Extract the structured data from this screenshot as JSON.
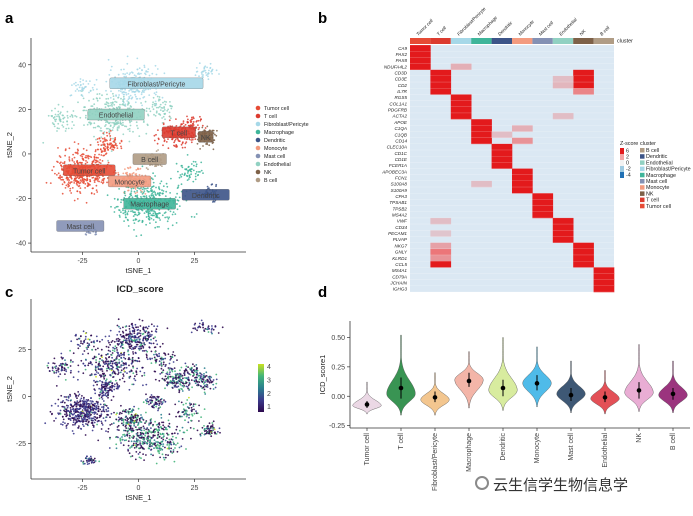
{
  "panels": {
    "a": "a",
    "b": "b",
    "c": "c",
    "d": "d"
  },
  "colors": {
    "Tumor cell": "#e64b35",
    "T cell": "#dc3b2f",
    "Fibroblast/Pericyte": "#a6d8e8",
    "Macrophage": "#3eb59a",
    "Dendritic": "#3c5488",
    "Monocyte": "#f39b7f",
    "Mast cell": "#8491b4",
    "Endothelial": "#91d1c2",
    "NK": "#7e6148",
    "B cell": "#b09c85"
  },
  "chart_data": [
    {
      "panel": "a",
      "type": "scatter",
      "xlabel": "tSNE_1",
      "ylabel": "tSNE_2",
      "xlim": [
        -48,
        48
      ],
      "ylim": [
        -44,
        52
      ],
      "xticks": [
        -25,
        0,
        25
      ],
      "yticks": [
        -40,
        -20,
        0,
        20,
        40
      ],
      "legend": [
        "Tumor cell",
        "T cell",
        "Fibroblast/Pericyte",
        "Macrophage",
        "Dendritic",
        "Monocyte",
        "Mast cell",
        "Endothelial",
        "NK",
        "B cell"
      ],
      "clusters": [
        {
          "name": "Fibroblast/Pericyte",
          "label": "Fibroblast/Pericyte",
          "cx": -2,
          "cy": 31,
          "label_x": 8,
          "label_y": 31
        },
        {
          "name": "Endothelial",
          "label": "Endothelial",
          "cx": -12,
          "cy": 17,
          "label_x": -10,
          "label_y": 17
        },
        {
          "name": "T cell",
          "label": "T cell",
          "cx": 18,
          "cy": 9,
          "label_x": 18,
          "label_y": 9
        },
        {
          "name": "NK",
          "label": "NK",
          "cx": 30,
          "cy": 8,
          "label_x": 30,
          "label_y": 7
        },
        {
          "name": "B cell",
          "label": "B cell",
          "cx": 7,
          "cy": -3,
          "label_x": 5,
          "label_y": -3
        },
        {
          "name": "Tumor cell",
          "label": "Tumor cell",
          "cx": -25,
          "cy": -8,
          "label_x": -22,
          "label_y": -8
        },
        {
          "name": "Monocyte",
          "label": "Monocyte",
          "cx": -3,
          "cy": -12,
          "label_x": -4,
          "label_y": -13
        },
        {
          "name": "Macrophage",
          "label": "Macrophage",
          "cx": 5,
          "cy": -22,
          "label_x": 5,
          "label_y": -23
        },
        {
          "name": "Dendritic",
          "label": "Dendritic",
          "cx": 32,
          "cy": -18,
          "label_x": 30,
          "label_y": -19
        },
        {
          "name": "Mast cell",
          "label": "Mast cell",
          "cx": -22,
          "cy": -34,
          "label_x": -26,
          "label_y": -33
        }
      ]
    },
    {
      "panel": "b",
      "type": "heatmap",
      "annotation": "cluster",
      "columns": [
        "Tumor cell",
        "T cell",
        "Fibroblast/Pericyte",
        "Macrophage",
        "Dendritic",
        "Monocyte",
        "Mast cell",
        "Endothelial",
        "NK",
        "B cell"
      ],
      "rows": [
        "CA9",
        "PAX2",
        "PAX8",
        "NDUFA4L2",
        "CD3D",
        "CD3E",
        "CD2",
        "IL7R",
        "RGS5",
        "COL1A1",
        "PDGFRB",
        "ACTA2",
        "APOE",
        "C1QA",
        "C1QB",
        "CD14",
        "CLEC10A",
        "CD1C",
        "CD1E",
        "FCER1A",
        "APOBEC3A",
        "FCN1",
        "S100A8",
        "S100A9",
        "CPA3",
        "TPSAB1",
        "TPSB2",
        "MS4A2",
        "VWF",
        "CD34",
        "PECAM1",
        "PLVAP",
        "NKG7",
        "GNLY",
        "KLRD1",
        "CCL5",
        "MS4A1",
        "CD79A",
        "JCHAIN",
        "IGHG3"
      ],
      "marker_groups": [
        [
          0,
          3
        ],
        [
          4,
          7
        ],
        [
          8,
          11
        ],
        [
          12,
          15
        ],
        [
          16,
          19
        ],
        [
          20,
          23
        ],
        [
          24,
          27
        ],
        [
          28,
          31
        ],
        [
          32,
          35
        ],
        [
          36,
          39
        ]
      ],
      "secondary": [
        [
          4,
          8,
          1
        ],
        [
          5,
          8,
          1
        ],
        [
          6,
          8,
          1
        ],
        [
          7,
          8,
          0.7
        ],
        [
          33,
          1,
          0.8
        ],
        [
          34,
          1,
          0.6
        ],
        [
          35,
          1,
          1
        ],
        [
          32,
          1,
          0.5
        ],
        [
          13,
          5,
          0.4
        ],
        [
          15,
          5,
          0.6
        ],
        [
          14,
          4,
          0.3
        ],
        [
          22,
          3,
          0.3
        ],
        [
          11,
          7,
          0.3
        ],
        [
          28,
          1,
          0.3
        ],
        [
          30,
          1,
          0.25
        ],
        [
          3,
          2,
          0.4
        ],
        [
          5,
          7,
          0.3
        ],
        [
          6,
          7,
          0.35
        ]
      ],
      "legend": {
        "title_zscore": "Z-score",
        "zscore_ticks": [
          "6",
          "2",
          "0",
          "-2",
          "-4"
        ],
        "title_cluster": "cluster",
        "cluster_entries": [
          "B cell",
          "Dendritic",
          "Endothelial",
          "Fibroblast/Pericyte",
          "Macrophage",
          "Mast cell",
          "Monocyte",
          "NK",
          "T cell",
          "Tumor cell"
        ]
      }
    },
    {
      "panel": "c",
      "type": "scatter",
      "title": "ICD_score",
      "xlabel": "tSNE_1",
      "ylabel": "tSNE_2",
      "xlim": [
        -48,
        48
      ],
      "ylim": [
        -44,
        52
      ],
      "xticks": [
        -25,
        0,
        25
      ],
      "yticks": [
        -25,
        0,
        25
      ],
      "colorbar": {
        "min": 0.6,
        "max": 4.2,
        "ticks": [
          1,
          2,
          3,
          4
        ],
        "colors": [
          "#2d0a4e",
          "#3b3a8c",
          "#2a7f8e",
          "#42b57a",
          "#c9e020"
        ]
      }
    },
    {
      "panel": "d",
      "type": "violin",
      "ylabel": "ICD_score1",
      "ylim": [
        -0.27,
        0.64
      ],
      "yticks": [
        -0.25,
        0.0,
        0.25,
        0.5
      ],
      "ytick_labels": [
        "-0.25",
        "0.00",
        "0.25",
        "0.50"
      ],
      "categories": [
        "Tumor cell",
        "T cell",
        "Fibroblast/Pericyte",
        "Macrophage",
        "Dendritic",
        "Monocyte",
        "Mast cell",
        "Endothelial",
        "NK",
        "B cell"
      ],
      "series": [
        {
          "name": "Tumor cell",
          "min": -0.15,
          "max": 0.12,
          "mode": -0.08,
          "median": -0.07,
          "q1": -0.1,
          "q3": -0.04,
          "color": "#ead6e4"
        },
        {
          "name": "T cell",
          "min": -0.16,
          "max": 0.52,
          "mode": 0.02,
          "median": 0.07,
          "q1": -0.02,
          "q3": 0.16,
          "color": "#2f8f4a"
        },
        {
          "name": "Fibroblast/Pericyte",
          "min": -0.16,
          "max": 0.2,
          "mode": -0.03,
          "median": -0.01,
          "q1": -0.05,
          "q3": 0.04,
          "color": "#f3c48a"
        },
        {
          "name": "Macrophage",
          "min": -0.1,
          "max": 0.38,
          "mode": 0.14,
          "median": 0.13,
          "q1": 0.08,
          "q3": 0.2,
          "color": "#f3b2a4"
        },
        {
          "name": "Dendritic",
          "min": -0.12,
          "max": 0.5,
          "mode": 0.05,
          "median": 0.07,
          "q1": 0.0,
          "q3": 0.14,
          "color": "#d6eb9a"
        },
        {
          "name": "Monocyte",
          "min": -0.09,
          "max": 0.42,
          "mode": 0.11,
          "median": 0.11,
          "q1": 0.05,
          "q3": 0.18,
          "color": "#46b8e8"
        },
        {
          "name": "Mast cell",
          "min": -0.14,
          "max": 0.3,
          "mode": 0.02,
          "median": 0.01,
          "q1": -0.04,
          "q3": 0.07,
          "color": "#34506e"
        },
        {
          "name": "Endothelial",
          "min": -0.15,
          "max": 0.22,
          "mode": -0.02,
          "median": -0.01,
          "q1": -0.05,
          "q3": 0.04,
          "color": "#e2474f"
        },
        {
          "name": "NK",
          "min": -0.13,
          "max": 0.44,
          "mode": 0.03,
          "median": 0.05,
          "q1": -0.02,
          "q3": 0.12,
          "color": "#e8a9d2"
        },
        {
          "name": "B cell",
          "min": -0.14,
          "max": 0.3,
          "mode": 0.01,
          "median": 0.02,
          "q1": -0.03,
          "q3": 0.07,
          "color": "#962a78"
        }
      ]
    }
  ],
  "watermark": {
    "text": "云生信学生物信息学",
    "icon": "wechat-logo-icon"
  }
}
